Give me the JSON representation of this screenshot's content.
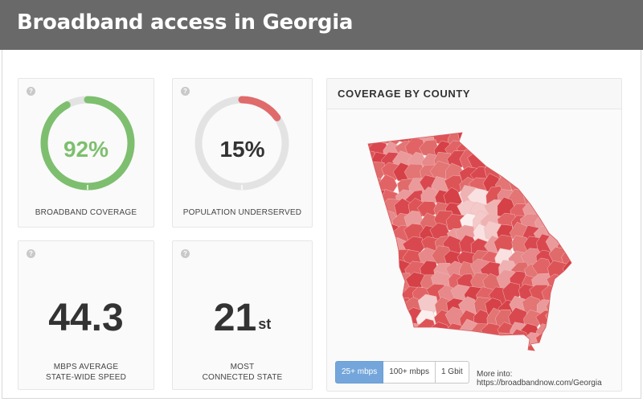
{
  "header": {
    "title": "Broadband access in Georgia"
  },
  "help_glyph": "?",
  "cards": {
    "coverage": {
      "value": "92%",
      "percent": 92,
      "label": "BROADBAND COVERAGE",
      "color": "#7dbf6e"
    },
    "underserved": {
      "value": "15%",
      "percent": 15,
      "label": "POPULATION UNDERSERVED",
      "color": "#e06b6b"
    },
    "speed": {
      "value": "44.3",
      "label_line1": "MBPS AVERAGE",
      "label_line2": "STATE-WIDE SPEED"
    },
    "rank": {
      "value": "21",
      "suffix": "st",
      "label_line1": "MOST",
      "label_line2": "CONNECTED STATE"
    }
  },
  "map": {
    "title": "COVERAGE BY COUNTY",
    "buttons": [
      {
        "label": "25+ mbps",
        "active": true
      },
      {
        "label": "100+ mbps",
        "active": false
      },
      {
        "label": "1 Gbit",
        "active": false
      }
    ],
    "more_line1": "More into:",
    "more_line2": "https://broadbandnow.com/Georgia",
    "fill_color": "#e06b6b"
  }
}
